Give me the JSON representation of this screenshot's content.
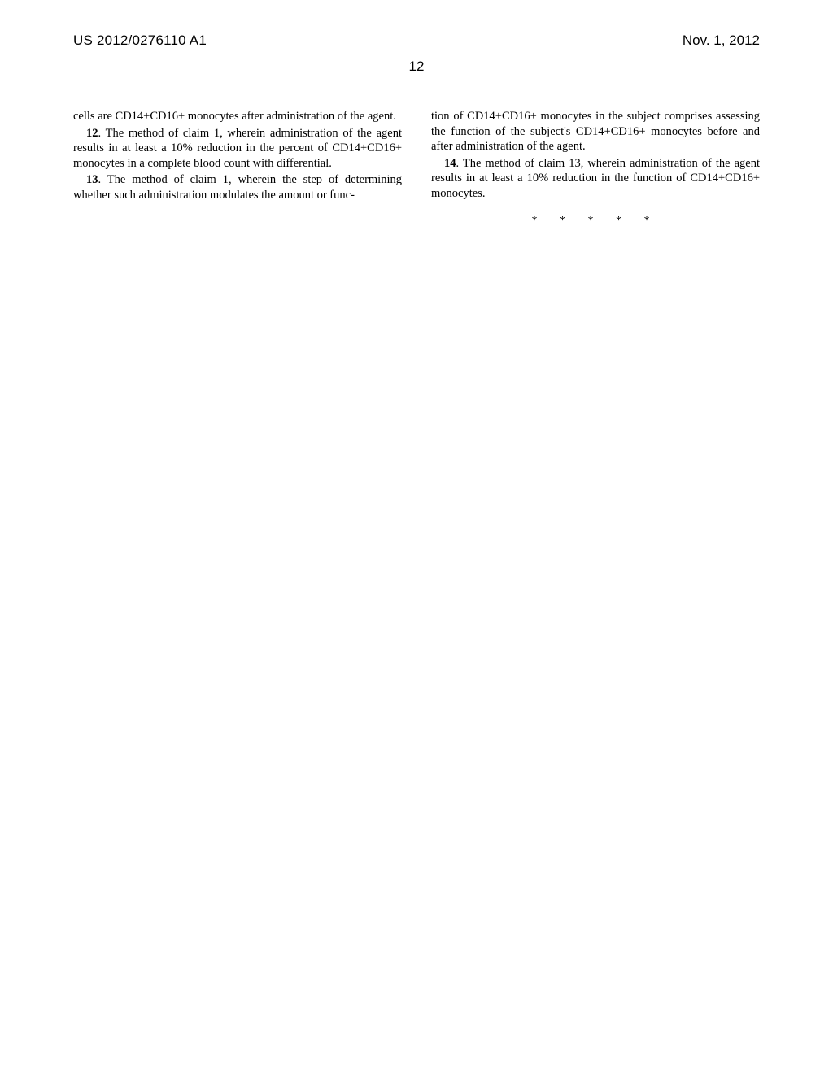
{
  "header": {
    "pub_number": "US 2012/0276110 A1",
    "pub_date": "Nov. 1, 2012"
  },
  "page_number": "12",
  "left_column": {
    "p1": "cells are CD14+CD16+ monocytes after administration of the agent.",
    "p2_num": "12",
    "p2": ". The method of claim 1, wherein administration of the agent results in at least a 10% reduction in the percent of CD14+CD16+ monocytes in a complete blood count with differential.",
    "p3_num": "13",
    "p3": ". The method of claim 1, wherein the step of determining whether such administration modulates the amount or func-"
  },
  "right_column": {
    "p1": "tion of CD14+CD16+ monocytes in the subject comprises assessing the function of the subject's CD14+CD16+ monocytes before and after administration of the agent.",
    "p2_num": "14",
    "p2": ". The method of claim 13, wherein administration of the agent results in at least a 10% reduction in the function of CD14+CD16+ monocytes."
  },
  "end_marks": "* * * * *"
}
